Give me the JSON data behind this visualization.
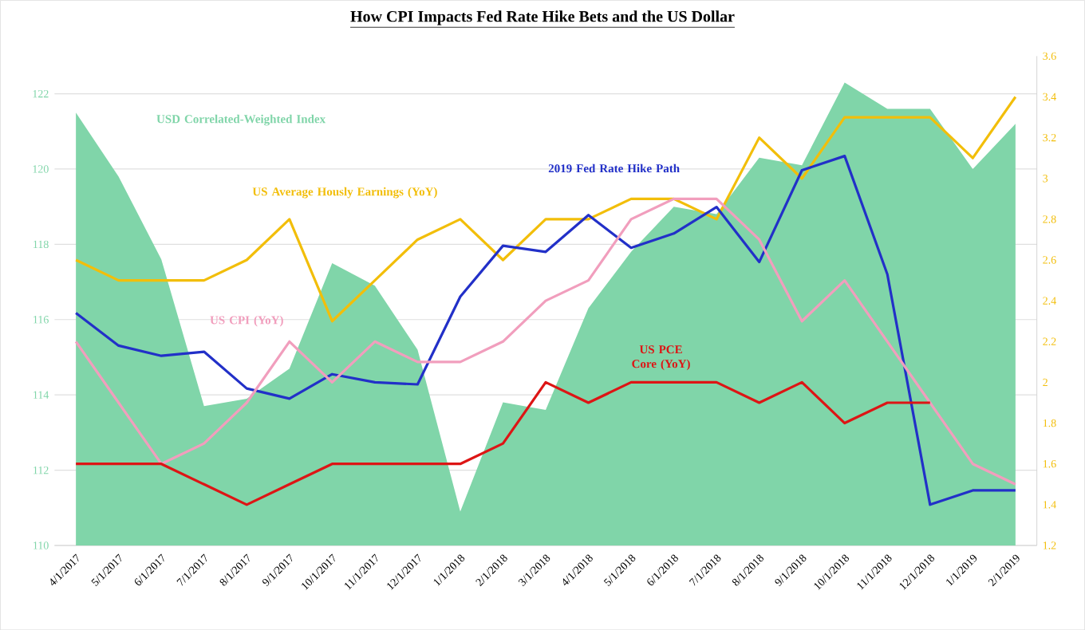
{
  "chart_data": {
    "type": "line",
    "title": "How CPI Impacts Fed Rate Hike Bets and the US Dollar",
    "categories": [
      "4/1/2017",
      "5/1/2017",
      "6/1/2017",
      "7/1/2017",
      "8/1/2017",
      "9/1/2017",
      "10/1/2017",
      "11/1/2017",
      "12/1/2017",
      "1/1/2018",
      "2/1/2018",
      "3/1/2018",
      "4/1/2018",
      "5/1/2018",
      "6/1/2018",
      "7/1/2018",
      "8/1/2018",
      "9/1/2018",
      "10/1/2018",
      "11/1/2018",
      "12/1/2018",
      "1/1/2019",
      "2/1/2019"
    ],
    "series": [
      {
        "name": "USD Correlated-Weighted Index",
        "type": "area",
        "color": "#80d5a9",
        "values": [
          121.5,
          119.8,
          117.6,
          113.7,
          113.9,
          114.7,
          117.5,
          116.9,
          115.2,
          110.9,
          113.8,
          113.6,
          116.3,
          117.8,
          119.0,
          118.8,
          120.3,
          120.1,
          122.3,
          121.6,
          121.6,
          120.0,
          121.2
        ]
      },
      {
        "name": "US Average Hously Earnings (YoY)",
        "axis": "y2",
        "color": "#f2be0a",
        "values": [
          2.6,
          2.5,
          2.5,
          2.5,
          2.6,
          2.8,
          2.3,
          2.5,
          2.7,
          2.8,
          2.6,
          2.8,
          2.8,
          2.9,
          2.9,
          2.8,
          3.2,
          3.0,
          3.3,
          3.3,
          3.3,
          3.1,
          3.4
        ]
      },
      {
        "name": "2019 Fed Rate Hike Path",
        "axis": "y2",
        "color": "#2230c8",
        "values": [
          2.34,
          2.18,
          2.13,
          2.15,
          1.97,
          1.92,
          2.04,
          2.0,
          1.99,
          2.42,
          2.67,
          2.64,
          2.82,
          2.66,
          2.73,
          2.86,
          2.59,
          3.04,
          3.11,
          2.53,
          1.4,
          1.47,
          1.47
        ]
      },
      {
        "name": "US CPI (YoY)",
        "axis": "y2",
        "color": "#f19ebd",
        "values": [
          2.2,
          1.9,
          1.6,
          1.7,
          1.9,
          2.2,
          2.0,
          2.2,
          2.1,
          2.1,
          2.2,
          2.4,
          2.5,
          2.8,
          2.9,
          2.9,
          2.7,
          2.3,
          2.5,
          2.2,
          1.9,
          1.6,
          1.5
        ]
      },
      {
        "name": "US PCE Core (YoY)",
        "axis": "y2",
        "color": "#dd1515",
        "values": [
          1.6,
          1.6,
          1.6,
          1.5,
          1.4,
          1.5,
          1.6,
          1.6,
          1.6,
          1.6,
          1.7,
          2.0,
          1.9,
          2.0,
          2.0,
          2.0,
          1.9,
          2.0,
          1.8,
          1.9,
          1.9,
          null,
          null
        ]
      }
    ],
    "ylim": [
      110,
      123
    ],
    "yticks": [
      110,
      112,
      114,
      116,
      118,
      120,
      122
    ],
    "y2lim": [
      1.2,
      3.6
    ],
    "y2ticks": [
      1.2,
      1.4,
      1.6,
      1.8,
      2,
      2.2,
      2.4,
      2.6,
      2.8,
      3,
      3.2,
      3.4,
      3.6
    ],
    "grid": "y"
  }
}
